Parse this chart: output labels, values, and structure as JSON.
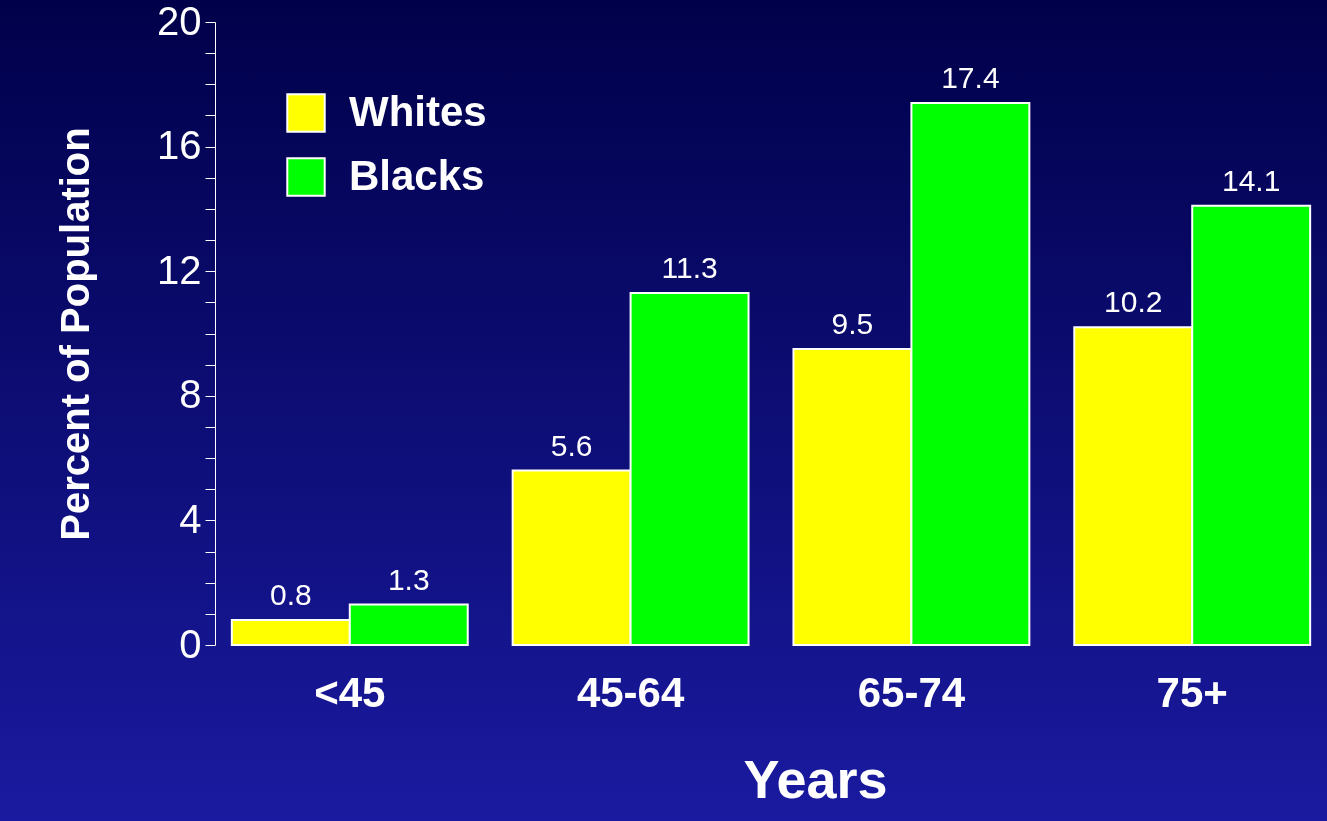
{
  "chart_data": {
    "type": "bar",
    "xlabel": "Years",
    "ylabel": "Percent of Population",
    "categories": [
      "<45",
      "45-64",
      "65-74",
      "75+"
    ],
    "series": [
      {
        "name": "Whites",
        "color": "#ffff00",
        "values": [
          0.8,
          5.6,
          9.5,
          10.2
        ]
      },
      {
        "name": "Blacks",
        "color": "#00ff00",
        "values": [
          1.3,
          11.3,
          17.4,
          14.1
        ]
      }
    ],
    "ylim": [
      0,
      20
    ],
    "yticks": [
      0,
      {
        "value": 1,
        "label": null
      },
      {
        "value": 2,
        "label": null
      },
      {
        "value": 3,
        "label": null
      },
      4,
      {
        "value": 5,
        "label": null
      },
      {
        "value": 6,
        "label": null
      },
      {
        "value": 7,
        "label": null
      },
      8,
      {
        "value": 9,
        "label": null
      },
      {
        "value": 10,
        "label": null
      },
      {
        "value": 11,
        "label": null
      },
      12,
      {
        "value": 13,
        "label": null
      },
      {
        "value": 14,
        "label": null
      },
      {
        "value": 15,
        "label": null
      },
      16,
      {
        "value": 17,
        "label": null
      },
      {
        "value": 18,
        "label": null
      },
      {
        "value": 19,
        "label": null
      },
      20
    ],
    "data_labels": true,
    "legend": "top left",
    "grid": false
  }
}
